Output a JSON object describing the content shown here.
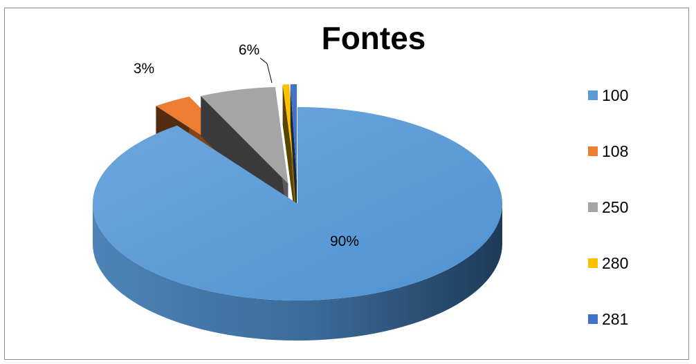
{
  "chart_data": {
    "type": "pie",
    "title": "Fontes",
    "categories": [
      "100",
      "108",
      "250",
      "280",
      "281"
    ],
    "values": [
      90,
      3,
      6,
      0.5,
      0.5
    ],
    "data_labels": [
      "90%",
      "3%",
      "6%",
      "",
      ""
    ],
    "colors": [
      "#5b9bd5",
      "#ed7d31",
      "#a5a5a5",
      "#ffc000",
      "#4472c4"
    ],
    "legend_position": "right",
    "exploded": true,
    "style": "3d"
  }
}
